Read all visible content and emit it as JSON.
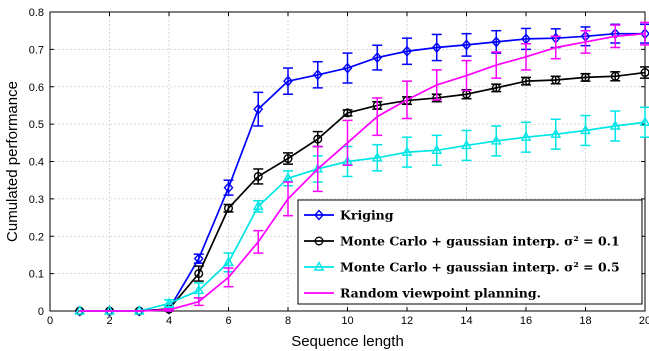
{
  "chart_data": {
    "type": "line",
    "title": "",
    "xlabel": "Sequence length",
    "ylabel": "Cumulated performance",
    "xlim": [
      0,
      20
    ],
    "ylim": [
      0,
      0.8
    ],
    "xticks": [
      0,
      2,
      4,
      6,
      8,
      10,
      12,
      14,
      16,
      18,
      20
    ],
    "yticks": [
      0,
      0.1,
      0.2,
      0.3,
      0.4,
      0.5,
      0.6,
      0.7,
      0.8
    ],
    "grid": true,
    "legend_position": "lower-right",
    "series": [
      {
        "name": "Kriging",
        "color": "#0000ff",
        "marker": "diamond",
        "x": [
          1,
          2,
          3,
          4,
          5,
          6,
          7,
          8,
          9,
          10,
          11,
          12,
          13,
          14,
          15,
          16,
          17,
          18,
          19,
          20
        ],
        "y": [
          0,
          0,
          0,
          0.005,
          0.14,
          0.33,
          0.54,
          0.615,
          0.632,
          0.65,
          0.678,
          0.695,
          0.705,
          0.712,
          0.72,
          0.728,
          0.73,
          0.735,
          0.742,
          0.742
        ],
        "err": [
          0,
          0,
          0,
          0.005,
          0.012,
          0.02,
          0.045,
          0.035,
          0.035,
          0.04,
          0.033,
          0.035,
          0.035,
          0.03,
          0.03,
          0.028,
          0.025,
          0.025,
          0.025,
          0.025
        ]
      },
      {
        "name": "Monte Carlo + gaussian interp. σ² = 0.1",
        "color": "#000000",
        "marker": "circle",
        "x": [
          1,
          2,
          3,
          4,
          5,
          6,
          7,
          8,
          9,
          10,
          11,
          12,
          13,
          14,
          15,
          16,
          17,
          18,
          19,
          20
        ],
        "y": [
          0,
          0,
          0,
          0.005,
          0.1,
          0.275,
          0.36,
          0.408,
          0.46,
          0.53,
          0.55,
          0.563,
          0.57,
          0.58,
          0.597,
          0.615,
          0.618,
          0.625,
          0.628,
          0.638
        ],
        "err": [
          0,
          0,
          0,
          0.005,
          0.02,
          0.01,
          0.02,
          0.015,
          0.02,
          0.008,
          0.01,
          0.01,
          0.01,
          0.012,
          0.01,
          0.01,
          0.01,
          0.01,
          0.012,
          0.015
        ]
      },
      {
        "name": "Monte Carlo + gaussian interp. σ² = 0.5",
        "color": "#00e6e6",
        "marker": "triangle",
        "x": [
          1,
          2,
          3,
          4,
          5,
          6,
          7,
          8,
          9,
          10,
          11,
          12,
          13,
          14,
          15,
          16,
          17,
          18,
          19,
          20
        ],
        "y": [
          0,
          0,
          0,
          0.02,
          0.055,
          0.13,
          0.28,
          0.355,
          0.38,
          0.4,
          0.41,
          0.425,
          0.43,
          0.443,
          0.455,
          0.465,
          0.473,
          0.483,
          0.495,
          0.505
        ],
        "err": [
          0,
          0,
          0,
          0.01,
          0.02,
          0.025,
          0.015,
          0.02,
          0.035,
          0.04,
          0.035,
          0.04,
          0.04,
          0.04,
          0.04,
          0.04,
          0.04,
          0.04,
          0.04,
          0.04
        ]
      },
      {
        "name": "Random viewpoint planning.",
        "color": "#ff00ff",
        "marker": "none",
        "x": [
          1,
          2,
          3,
          4,
          5,
          6,
          7,
          8,
          9,
          10,
          11,
          12,
          13,
          14,
          15,
          16,
          17,
          18,
          19,
          20
        ],
        "y": [
          0,
          0,
          0,
          0.003,
          0.025,
          0.09,
          0.185,
          0.3,
          0.38,
          0.45,
          0.52,
          0.565,
          0.605,
          0.63,
          0.658,
          0.68,
          0.705,
          0.72,
          0.735,
          0.742
        ],
        "err": [
          0,
          0,
          0,
          0.003,
          0.01,
          0.025,
          0.03,
          0.045,
          0.06,
          0.06,
          0.05,
          0.05,
          0.04,
          0.04,
          0.035,
          0.035,
          0.03,
          0.03,
          0.03,
          0.03
        ]
      }
    ]
  }
}
